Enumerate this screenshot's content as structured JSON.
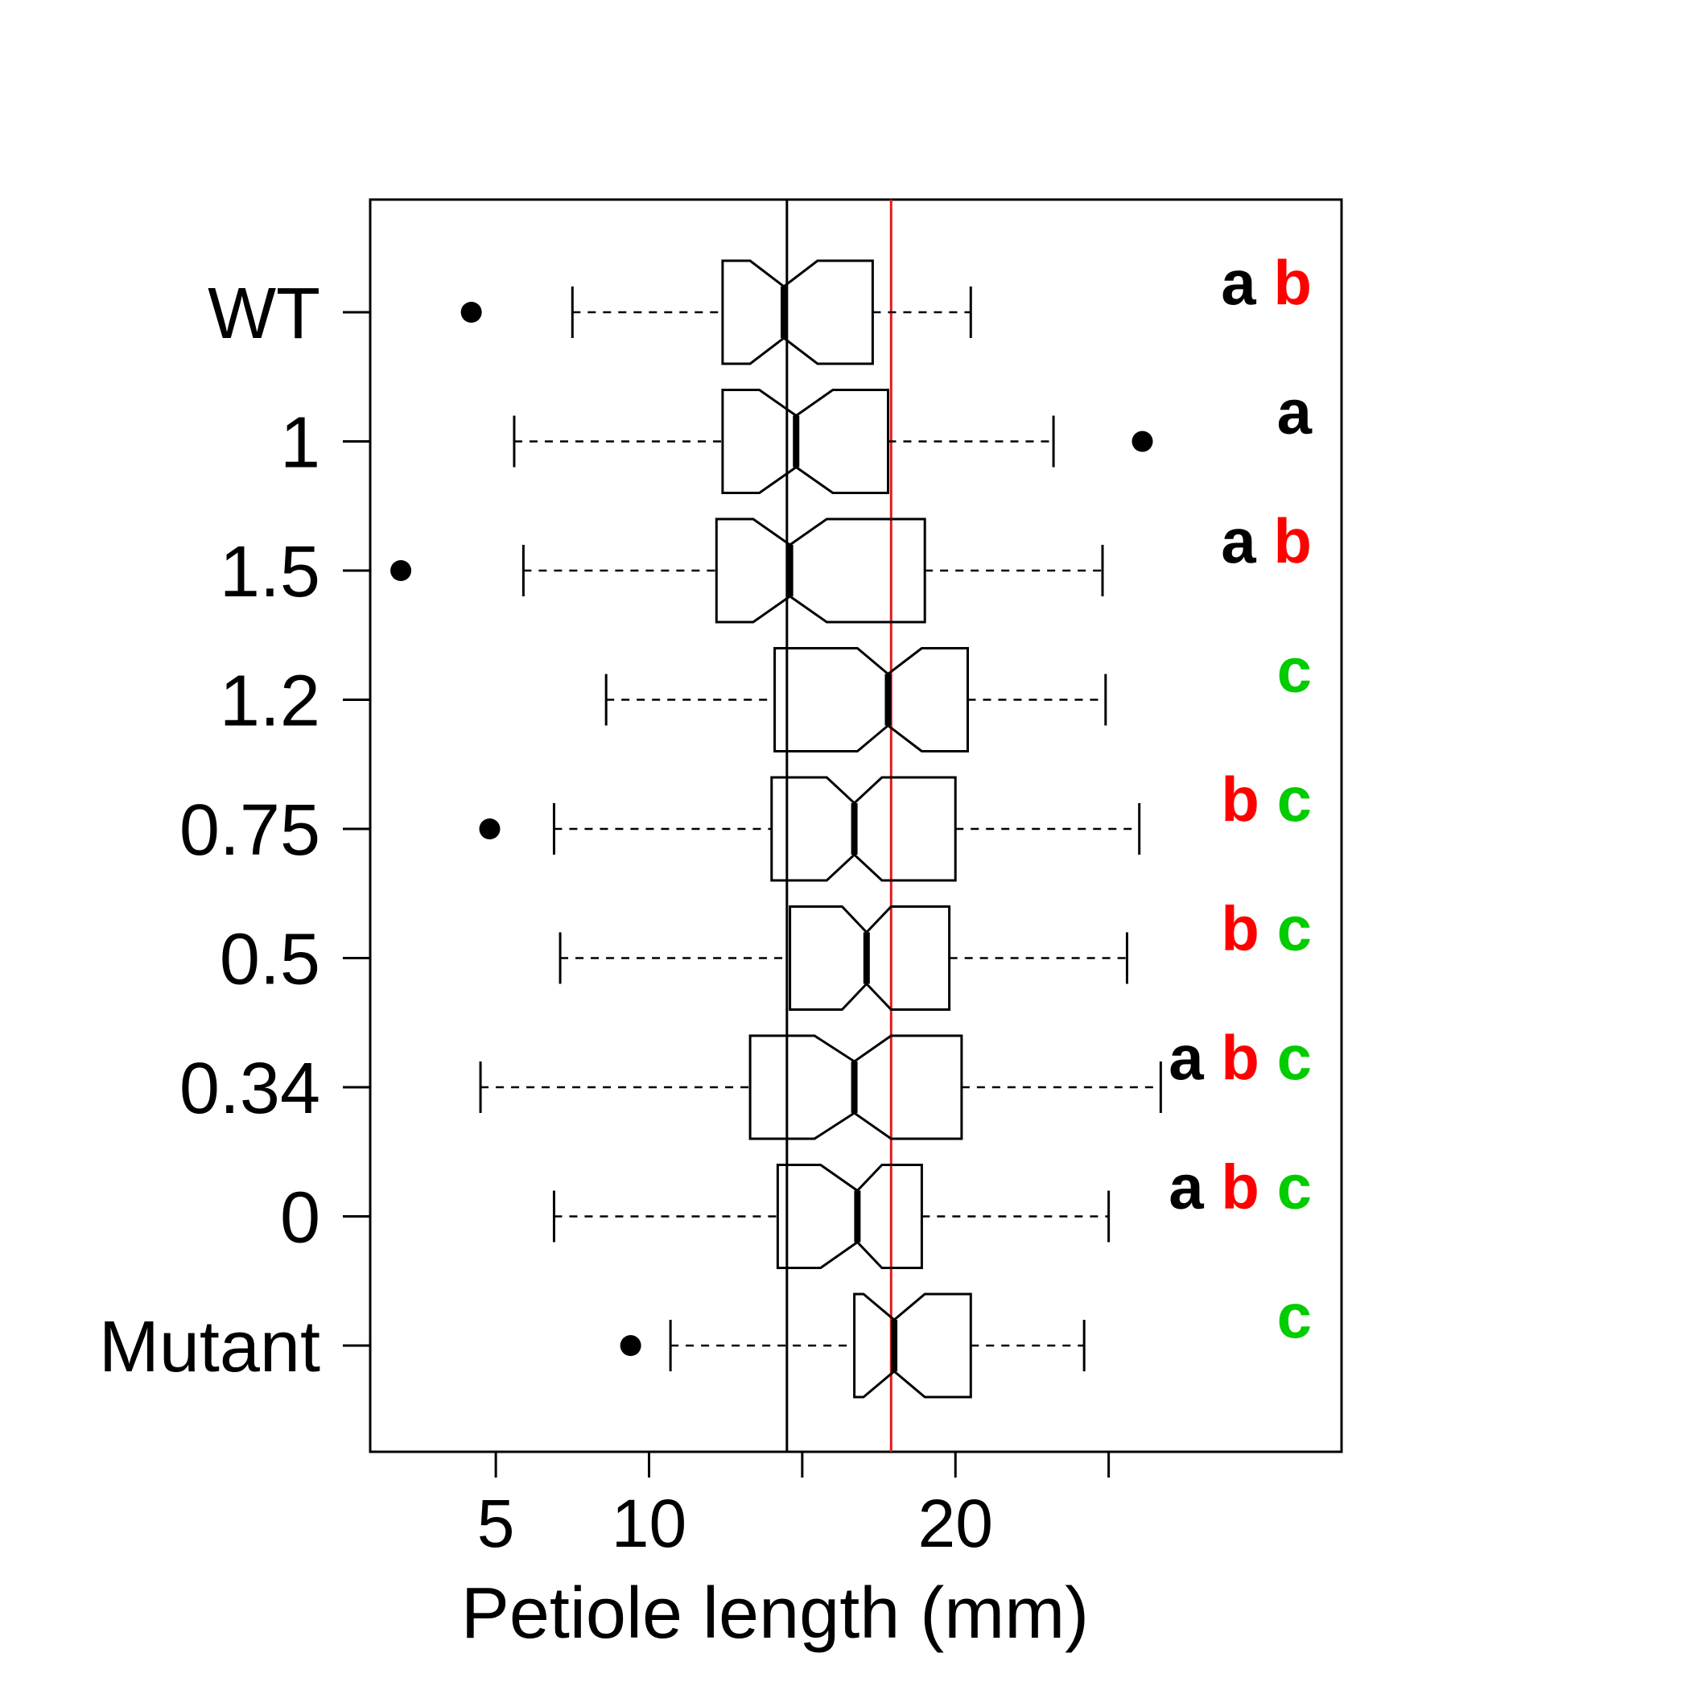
{
  "chart_data": {
    "type": "boxplot",
    "orientation": "horizontal",
    "notched": true,
    "xlabel": "Petiole length (mm)",
    "xlim": [
      0.9,
      32.6
    ],
    "xticks": [
      5,
      10,
      15,
      20,
      25
    ],
    "xtick_labels": [
      "5",
      "10",
      "",
      "20",
      ""
    ],
    "reference_lines": [
      {
        "value": 14.5,
        "color": "#000000"
      },
      {
        "value": 17.9,
        "color": "#e31a1c"
      }
    ],
    "letter_colors": {
      "a": "#000000",
      "b": "#ff0000",
      "c": "#00cc00"
    },
    "categories": [
      {
        "label": "WT",
        "whisker_low": 7.5,
        "q1": 12.4,
        "median": 14.4,
        "q3": 17.3,
        "whisker_high": 20.5,
        "notch_low": 13.3,
        "notch_high": 15.5,
        "outliers": [
          4.2
        ],
        "letters": [
          "a",
          "b"
        ]
      },
      {
        "label": "1",
        "whisker_low": 5.6,
        "q1": 12.4,
        "median": 14.8,
        "q3": 17.8,
        "whisker_high": 23.2,
        "notch_low": 13.6,
        "notch_high": 16.0,
        "outliers": [
          26.1
        ],
        "letters": [
          "a"
        ]
      },
      {
        "label": "1.5",
        "whisker_low": 5.9,
        "q1": 12.2,
        "median": 14.6,
        "q3": 19.0,
        "whisker_high": 24.8,
        "notch_low": 13.4,
        "notch_high": 15.8,
        "outliers": [
          1.9
        ],
        "letters": [
          "a",
          "b"
        ]
      },
      {
        "label": "1.2",
        "whisker_low": 8.6,
        "q1": 14.1,
        "median": 17.8,
        "q3": 20.4,
        "whisker_high": 24.9,
        "notch_low": 16.8,
        "notch_high": 18.9,
        "outliers": [],
        "letters": [
          "c"
        ]
      },
      {
        "label": "0.75",
        "whisker_low": 6.9,
        "q1": 14.0,
        "median": 16.7,
        "q3": 20.0,
        "whisker_high": 26.0,
        "notch_low": 15.8,
        "notch_high": 17.6,
        "outliers": [
          4.8
        ],
        "letters": [
          "b",
          "c"
        ]
      },
      {
        "label": "0.5",
        "whisker_low": 7.1,
        "q1": 14.6,
        "median": 17.1,
        "q3": 19.8,
        "whisker_high": 25.6,
        "notch_low": 16.3,
        "notch_high": 17.9,
        "outliers": [],
        "letters": [
          "b",
          "c"
        ]
      },
      {
        "label": "0.34",
        "whisker_low": 4.5,
        "q1": 13.3,
        "median": 16.7,
        "q3": 20.2,
        "whisker_high": 26.7,
        "notch_low": 15.4,
        "notch_high": 17.9,
        "outliers": [],
        "letters": [
          "a",
          "b",
          "c"
        ]
      },
      {
        "label": "0",
        "whisker_low": 6.9,
        "q1": 14.2,
        "median": 16.8,
        "q3": 18.9,
        "whisker_high": 25.0,
        "notch_low": 15.6,
        "notch_high": 17.6,
        "outliers": [],
        "letters": [
          "a",
          "b",
          "c"
        ]
      },
      {
        "label": "Mutant",
        "whisker_low": 10.7,
        "q1": 16.7,
        "median": 18.0,
        "q3": 20.5,
        "whisker_high": 24.2,
        "notch_low": 17.0,
        "notch_high": 19.0,
        "outliers": [
          9.4
        ],
        "letters": [
          "c"
        ]
      }
    ]
  }
}
